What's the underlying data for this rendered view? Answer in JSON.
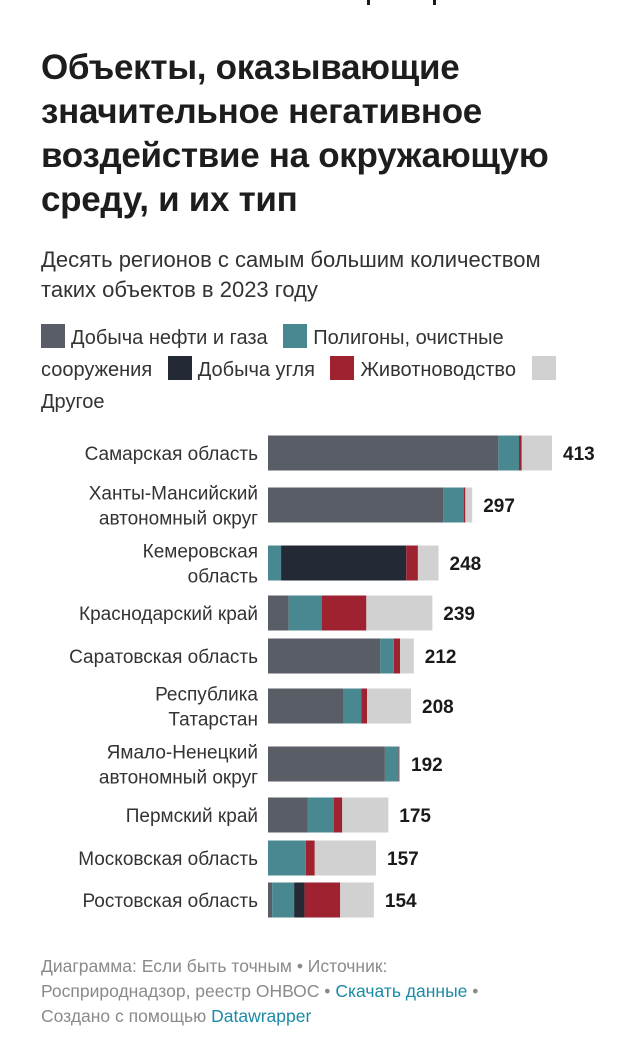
{
  "title": "Объекты, оказывающие значительное негативное воздействие на окружающую среду, и их тип",
  "subtitle": "Десять регионов с самым большим количеством таких объектов в 2023 году",
  "legend": [
    {
      "label": "Добыча нефти и газа",
      "color": "#595d66"
    },
    {
      "label": "Полигоны, очистные сооружения",
      "color": "#4a8891"
    },
    {
      "label": "Добыча угля",
      "color": "#232a36"
    },
    {
      "label": "Животноводство",
      "color": "#9e2230"
    },
    {
      "label": "Другое",
      "color": "#d1d1d1"
    }
  ],
  "chart_data": {
    "type": "bar",
    "orientation": "horizontal",
    "stacked": true,
    "categories": [
      "Самарская область",
      "Ханты-Мансийский автономный округ",
      "Кемеровская область",
      "Краснодарский край",
      "Саратовская область",
      "Республика Татарстан",
      "Ямало-Ненецкий автономный округ",
      "Пермский край",
      "Московская область",
      "Ростовская область"
    ],
    "category_lines": [
      [
        "Самарская область"
      ],
      [
        "Ханты-Мансийский",
        "автономный округ"
      ],
      [
        "Кемеровская",
        "область"
      ],
      [
        "Краснодарский край"
      ],
      [
        "Саратовская область"
      ],
      [
        "Республика",
        "Татарстан"
      ],
      [
        "Ямало-Ненецкий",
        "автономный округ"
      ],
      [
        "Пермский край"
      ],
      [
        "Московская область"
      ],
      [
        "Ростовская область"
      ]
    ],
    "series": [
      {
        "name": "Добыча нефти и газа",
        "color": "#595d66",
        "values": [
          335,
          255,
          0,
          30,
          163,
          110,
          170,
          58,
          0,
          6
        ]
      },
      {
        "name": "Полигоны, очистные сооружения",
        "color": "#4a8891",
        "values": [
          30,
          30,
          19,
          48,
          20,
          26,
          20,
          38,
          55,
          32
        ]
      },
      {
        "name": "Добыча угля",
        "color": "#232a36",
        "values": [
          0,
          0,
          182,
          0,
          0,
          0,
          0,
          0,
          0,
          15
        ]
      },
      {
        "name": "Животноводство",
        "color": "#9e2230",
        "values": [
          4,
          2,
          17,
          65,
          9,
          8,
          1,
          12,
          13,
          52
        ]
      },
      {
        "name": "Другое",
        "color": "#d1d1d1",
        "values": [
          44,
          10,
          30,
          96,
          20,
          64,
          1,
          67,
          89,
          49
        ]
      }
    ],
    "totals": [
      413,
      297,
      248,
      239,
      212,
      208,
      192,
      175,
      157,
      154
    ],
    "xlim": [
      0,
      413
    ],
    "grid": false,
    "legend_position": "top"
  },
  "footer": {
    "line1": "Диаграмма: Если быть точным • Источник:",
    "line2": "Росприроднадзор, реестр ОНВОС •",
    "download_link": "Скачать данные",
    "sep": "•",
    "created_with": "Создано с помощью",
    "datawrapper": "Datawrapper"
  }
}
